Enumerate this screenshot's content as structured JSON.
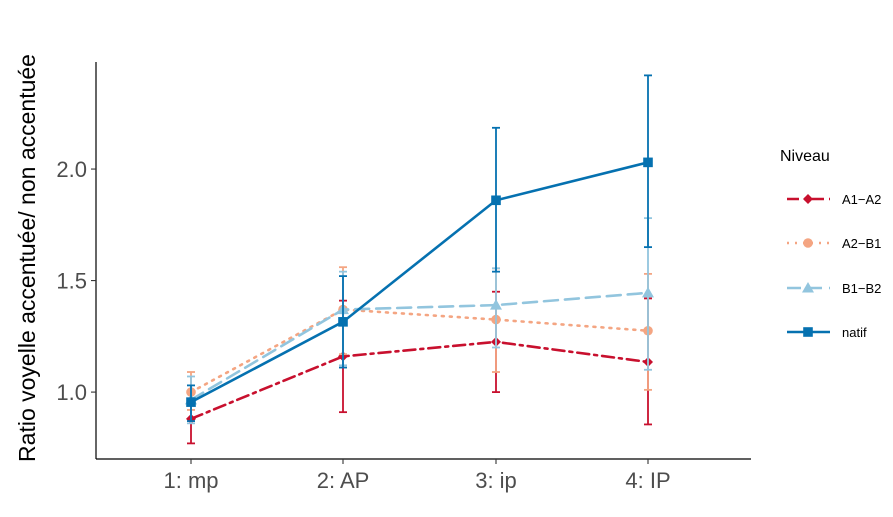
{
  "chart_data": {
    "type": "line",
    "xlabel": "",
    "ylabel": "Ratio voyelle accentuée/ non accentuée",
    "categories": [
      "1: mp",
      "2: AP",
      "3: ip",
      "4: IP"
    ],
    "yticks": [
      1.0,
      1.5,
      2.0
    ],
    "ytick_labels": [
      "1.0",
      "1.5",
      "2.0"
    ],
    "ylim": [
      0.7,
      2.48
    ],
    "grid": false,
    "legend": {
      "title": "Niveau",
      "position": "right"
    },
    "series": [
      {
        "name": "A1−A2",
        "color": "#c8102e",
        "dash": "dashdot",
        "marker": "diamond",
        "values": [
          0.88,
          1.16,
          1.225,
          1.135
        ],
        "ymin": [
          0.77,
          0.91,
          1.0,
          0.855
        ],
        "ymax": [
          1.0,
          1.41,
          1.45,
          1.42
        ]
      },
      {
        "name": "A2−B1",
        "color": "#f4a582",
        "dash": "dotted",
        "marker": "circle",
        "values": [
          1.0,
          1.37,
          1.325,
          1.275
        ],
        "ymin": [
          0.92,
          1.17,
          1.09,
          1.01
        ],
        "ymax": [
          1.09,
          1.56,
          1.555,
          1.53
        ]
      },
      {
        "name": "B1−B2",
        "color": "#92c5de",
        "dash": "dashed",
        "marker": "triangle",
        "values": [
          0.965,
          1.37,
          1.39,
          1.445
        ],
        "ymin": [
          0.86,
          1.12,
          1.2,
          1.1
        ],
        "ymax": [
          1.07,
          1.54,
          1.555,
          1.78
        ]
      },
      {
        "name": "natif",
        "color": "#0571b0",
        "dash": "solid",
        "marker": "square",
        "values": [
          0.955,
          1.315,
          1.86,
          2.03
        ],
        "ymin": [
          0.87,
          1.11,
          1.54,
          1.65
        ],
        "ymax": [
          1.03,
          1.52,
          2.185,
          2.42
        ]
      }
    ]
  }
}
